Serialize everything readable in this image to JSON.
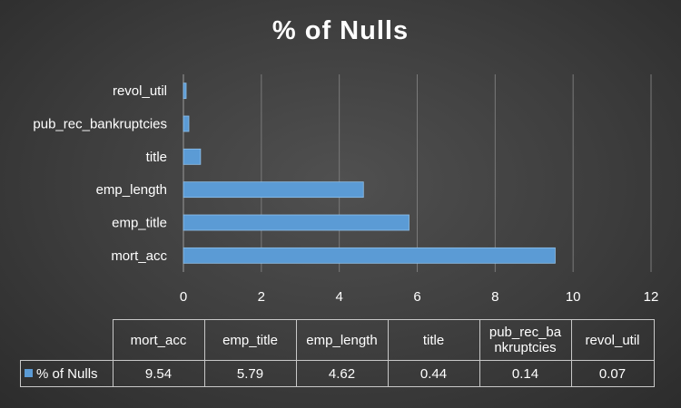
{
  "chart_data": {
    "type": "bar",
    "orientation": "horizontal",
    "title": "% of Nulls",
    "categories": [
      "mort_acc",
      "emp_title",
      "emp_length",
      "title",
      "pub_rec_bankruptcies",
      "revol_util"
    ],
    "table_headers": [
      "mort_acc",
      "emp_title",
      "emp_length",
      "title",
      "pub_rec_ba nkruptcies",
      "revol_util"
    ],
    "series": [
      {
        "name": "% of Nulls",
        "values": [
          9.54,
          5.79,
          4.62,
          0.44,
          0.14,
          0.07
        ],
        "display": [
          "9.54",
          "5.79",
          "4.62",
          "0.44",
          "0.14",
          "0.07"
        ]
      }
    ],
    "xlim": [
      0,
      12
    ],
    "xticks": [
      0,
      2,
      4,
      6,
      8,
      10,
      12
    ],
    "grid": true,
    "legend": "data-table",
    "colors": {
      "bar": "#5b9bd5",
      "grid": "#7a7a7a",
      "text": "#ffffff"
    }
  }
}
